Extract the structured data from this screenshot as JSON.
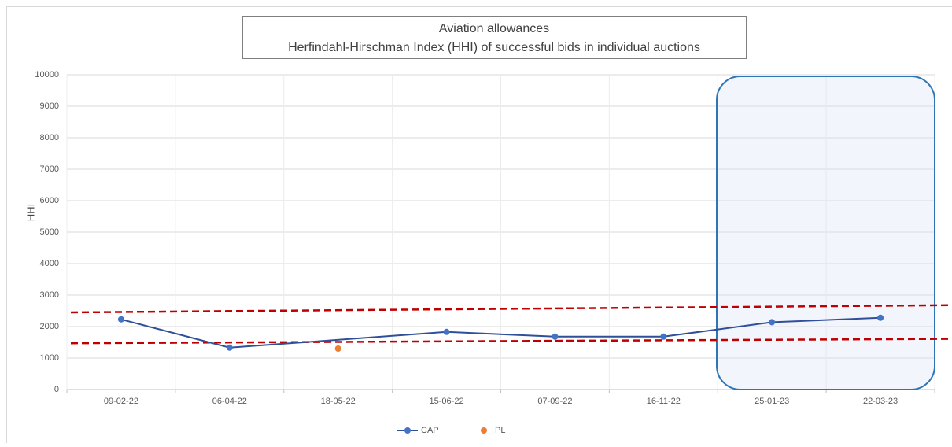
{
  "chart_data": {
    "type": "line",
    "title": "Aviation allowances",
    "subtitle": "Herfindahl-Hirschman Index (HHI) of successful bids in individual auctions",
    "y_label": "HHI",
    "categories": [
      "09-02-22",
      "06-04-22",
      "18-05-22",
      "15-06-22",
      "07-09-22",
      "16-11-22",
      "25-01-23",
      "22-03-23"
    ],
    "series": [
      {
        "name": "CAP",
        "color": "#4472c4",
        "line_color": "#2f4f99",
        "values": [
          2230,
          1330,
          null,
          1830,
          1680,
          1680,
          2140,
          2280
        ],
        "connect_gaps": true
      },
      {
        "name": "PL",
        "color": "#ed7d31",
        "values": [
          null,
          null,
          1300,
          null,
          null,
          null,
          null,
          null
        ],
        "marker_only": true
      }
    ],
    "reference_lines": [
      {
        "values": [
          2450,
          2680
        ]
      },
      {
        "values": [
          1470,
          1610
        ]
      }
    ],
    "reference_color": "#c00000",
    "ylim": [
      0,
      10000
    ],
    "yticks": [
      0,
      1000,
      2000,
      3000,
      4000,
      5000,
      6000,
      7000,
      8000,
      9000,
      10000
    ],
    "grid": true
  }
}
